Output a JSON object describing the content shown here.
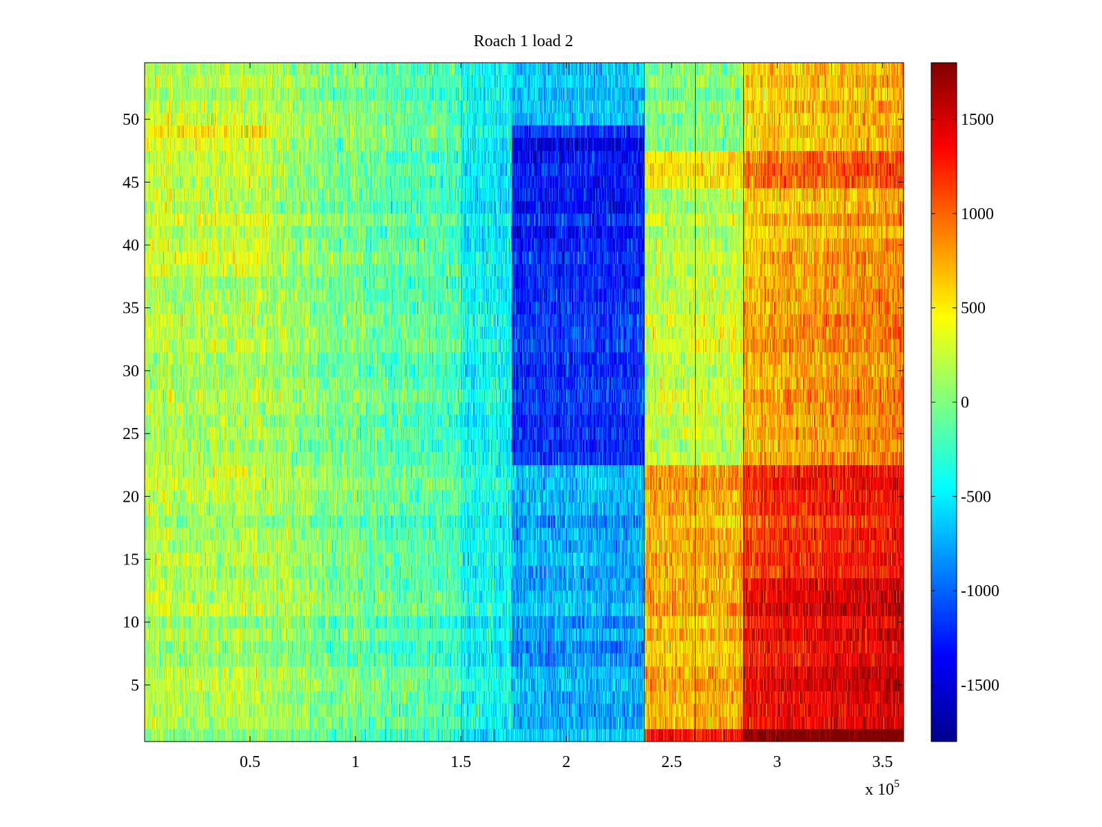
{
  "chart_data": {
    "type": "heatmap",
    "title": "Roach 1 load 2",
    "xlabel": "",
    "ylabel": "",
    "x_multiplier": "x 10",
    "x_multiplier_exponent": "5",
    "xlim": [
      0,
      3.6
    ],
    "ylim": [
      0.5,
      54.5
    ],
    "xticks": [
      {
        "value": 0.5,
        "label": "0.5"
      },
      {
        "value": 1,
        "label": "1"
      },
      {
        "value": 1.5,
        "label": "1.5"
      },
      {
        "value": 2,
        "label": "2"
      },
      {
        "value": 2.5,
        "label": "2.5"
      },
      {
        "value": 3,
        "label": "3"
      },
      {
        "value": 3.5,
        "label": "3.5"
      }
    ],
    "yticks": [
      {
        "value": 5,
        "label": "5"
      },
      {
        "value": 10,
        "label": "10"
      },
      {
        "value": 15,
        "label": "15"
      },
      {
        "value": 20,
        "label": "20"
      },
      {
        "value": 25,
        "label": "25"
      },
      {
        "value": 30,
        "label": "30"
      },
      {
        "value": 35,
        "label": "35"
      },
      {
        "value": 40,
        "label": "40"
      },
      {
        "value": 45,
        "label": "45"
      },
      {
        "value": 50,
        "label": "50"
      }
    ],
    "colorbar": {
      "colormap": "jet",
      "clim": [
        -1800,
        1800
      ],
      "ticks": [
        {
          "value": 1500,
          "label": "1500"
        },
        {
          "value": 1000,
          "label": "1000"
        },
        {
          "value": 500,
          "label": "500"
        },
        {
          "value": 0,
          "label": "0"
        },
        {
          "value": -500,
          "label": "-500"
        },
        {
          "value": -1000,
          "label": "-1000"
        },
        {
          "value": -1500,
          "label": "-1500"
        }
      ]
    },
    "rows": 54,
    "vertical_lines_x": [
      2.37,
      2.61,
      2.84
    ],
    "segments": [
      {
        "x_range": [
          0,
          0.6
        ],
        "value_rows_1_to_54": "approx 0 to 500 (green-yellow, higher near rows 40-50)"
      },
      {
        "x_range": [
          0.6,
          1.5
        ],
        "value_rows_1_to_54": "approx -300 to 200 (cyan-green)"
      },
      {
        "x_range": [
          1.5,
          1.74
        ],
        "value_rows_1_to_54": "approx -600 to -300 (cyan)"
      },
      {
        "x_range": [
          1.74,
          2.37
        ],
        "value_rows_1_to_54": "approx -1400 to -700 (blue), strongest rows 23-49"
      },
      {
        "x_range": [
          2.37,
          2.84
        ],
        "value_rows_1_to_54": "approx -200 to 900 (green-orange), high rows 1-22 and 45-47"
      },
      {
        "x_range": [
          2.84,
          3.6
        ],
        "value_rows_1_to_54": "approx 300 to 1700 (yellow-red), peak rows 1-13"
      }
    ],
    "grid": false,
    "legend": "colorbar right"
  }
}
